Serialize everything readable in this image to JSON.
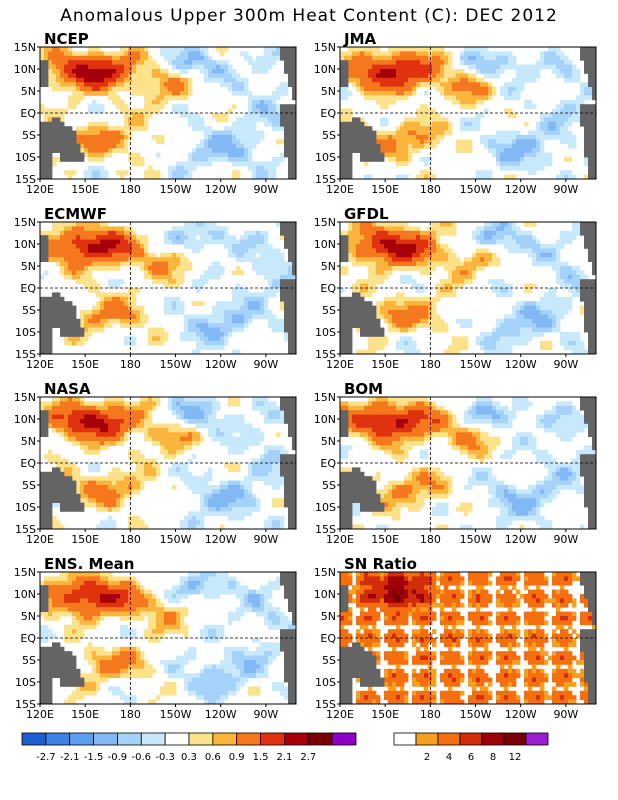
{
  "title": "Anomalous Upper 300m Heat Content (C): DEC 2012",
  "panels": [
    {
      "name": "NCEP",
      "variant": 0
    },
    {
      "name": "JMA",
      "variant": 1
    },
    {
      "name": "ECMWF",
      "variant": 2
    },
    {
      "name": "GFDL",
      "variant": 3
    },
    {
      "name": "NASA",
      "variant": 4
    },
    {
      "name": "BOM",
      "variant": 5
    },
    {
      "name": "ENS. Mean",
      "variant": 6
    },
    {
      "name": "SN Ratio",
      "variant": 7
    }
  ],
  "axes": {
    "lon_ticks": [
      "120E",
      "150E",
      "180",
      "150W",
      "120W",
      "90W"
    ],
    "lat_ticks": [
      "15N",
      "10N",
      "5N",
      "EQ",
      "5S",
      "10S",
      "15S"
    ],
    "lon_range": [
      120,
      290
    ],
    "lat_range": [
      -15,
      15
    ]
  },
  "colorbar_anomaly": {
    "labels": [
      "-2.7",
      "-2.1",
      "-1.5",
      "-0.9",
      "-0.6",
      "-0.3",
      "0.3",
      "0.6",
      "0.9",
      "1.5",
      "2.1",
      "2.7"
    ],
    "colors": [
      "#1e5fd0",
      "#3c82e6",
      "#5aa0f0",
      "#82b9f5",
      "#a5d2f8",
      "#c8e9fb",
      "#ffffff",
      "#fde28c",
      "#fbb43c",
      "#f5781e",
      "#e1320f",
      "#a5000a",
      "#780000",
      "#8c00c8"
    ]
  },
  "colorbar_sn": {
    "labels": [
      "2",
      "4",
      "6",
      "8",
      "12"
    ],
    "colors": [
      "#ffffff",
      "#f5a01e",
      "#f56e0f",
      "#d22d0a",
      "#a0000a",
      "#780000",
      "#9b1ed2"
    ]
  },
  "chart_data": {
    "type": "heatmap",
    "title": "Anomalous Upper 300m Heat Content (C): DEC 2012",
    "x_range": [
      120,
      290
    ],
    "y_range": [
      -15,
      15
    ],
    "series": [
      {
        "name": "NCEP"
      },
      {
        "name": "JMA"
      },
      {
        "name": "ECMWF"
      },
      {
        "name": "GFDL"
      },
      {
        "name": "NASA"
      },
      {
        "name": "BOM"
      },
      {
        "name": "ENS. Mean"
      },
      {
        "name": "SN Ratio"
      }
    ],
    "anomaly_levels": [
      -2.7,
      -2.1,
      -1.5,
      -0.9,
      -0.6,
      -0.3,
      0.3,
      0.6,
      0.9,
      1.5,
      2.1,
      2.7
    ],
    "sn_levels": [
      2,
      4,
      6,
      8,
      12
    ]
  }
}
